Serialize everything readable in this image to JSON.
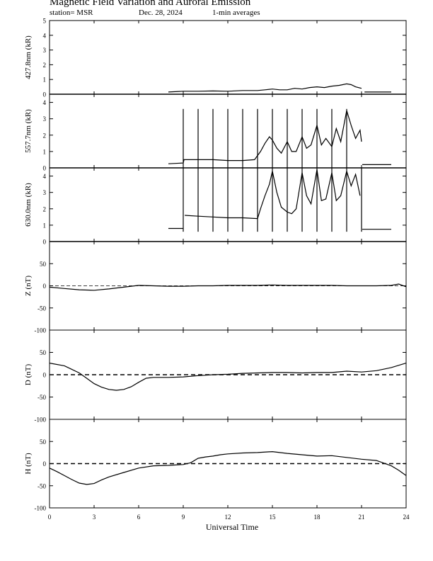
{
  "header": {
    "title": "Magnetic Field Variation and Auroral Emission",
    "station": "station= MSR",
    "date": "Dec. 28, 2024",
    "averaging": "1-min averages"
  },
  "chart_data": {
    "type": "line",
    "xlabel": "Universal Time",
    "xlim": [
      0,
      24
    ],
    "xticks": [
      0,
      3,
      6,
      9,
      12,
      15,
      18,
      21,
      24
    ],
    "panels": [
      {
        "id": "427",
        "ylabel": "427.8nm (kR)",
        "ylim": [
          0,
          5
        ],
        "yticks": [
          0,
          1,
          2,
          3,
          4,
          5
        ],
        "baseline": 0,
        "series": [
          {
            "x": [
              8.0,
              9.0,
              10.0,
              11.0,
              12.0,
              13.0,
              14.0,
              14.5,
              15.0,
              15.5,
              16.0,
              16.5,
              17.0,
              17.5,
              18.0,
              18.5,
              19.0,
              19.5,
              20.0,
              20.3,
              20.6,
              21.0
            ],
            "y": [
              0.15,
              0.2,
              0.2,
              0.22,
              0.2,
              0.25,
              0.25,
              0.3,
              0.35,
              0.3,
              0.3,
              0.4,
              0.35,
              0.45,
              0.5,
              0.45,
              0.55,
              0.6,
              0.7,
              0.65,
              0.5,
              0.4
            ]
          },
          {
            "x": [
              21.2,
              22.0,
              23.0
            ],
            "y": [
              0.15,
              0.15,
              0.15
            ]
          }
        ]
      },
      {
        "id": "557",
        "ylabel": "557.7nm (kR)",
        "ylim": [
          0,
          4.5
        ],
        "yticks": [
          0,
          1,
          2,
          3,
          4
        ],
        "baseline": 0,
        "spikes": [
          9.0,
          10.0,
          11.0,
          12.0,
          13.0,
          14.0,
          15.0,
          16.0,
          17.0,
          18.0,
          19.0,
          20.0
        ],
        "spike_top": 3.6,
        "series": [
          {
            "x": [
              8.0,
              9.0,
              9.05,
              10.0,
              11.0,
              12.0,
              13.0,
              13.8,
              14.2,
              14.5,
              14.8,
              15.0,
              15.3,
              15.6,
              16.0,
              16.3,
              16.6,
              17.0,
              17.3,
              17.6,
              18.0,
              18.3,
              18.6,
              19.0,
              19.3,
              19.6,
              20.0,
              20.3,
              20.6,
              20.9,
              21.0
            ],
            "y": [
              0.25,
              0.3,
              0.5,
              0.5,
              0.5,
              0.45,
              0.45,
              0.5,
              1.0,
              1.5,
              1.9,
              1.7,
              1.2,
              0.9,
              1.6,
              1.0,
              1.0,
              1.9,
              1.2,
              1.4,
              2.6,
              1.4,
              1.8,
              1.3,
              2.4,
              1.6,
              3.5,
              2.6,
              1.8,
              2.3,
              1.6
            ]
          },
          {
            "x": [
              21.05,
              22.0,
              23.0
            ],
            "y": [
              0.2,
              0.2,
              0.2
            ]
          }
        ]
      },
      {
        "id": "630",
        "ylabel": "630.0nm (kR)",
        "ylim": [
          0,
          4.5
        ],
        "yticks": [
          0,
          1,
          2,
          3,
          4
        ],
        "baseline": 0,
        "spikes": [
          9.0,
          10.0,
          11.0,
          12.0,
          13.0,
          14.0,
          15.0,
          16.0,
          17.0,
          18.0,
          19.0,
          20.0,
          21.0
        ],
        "spike_top": 4.5,
        "spike_bottom": 0.6,
        "series": [
          {
            "x": [
              8.0,
              9.0
            ],
            "y": [
              0.8,
              0.8
            ]
          },
          {
            "x": [
              9.1,
              10.0,
              11.0,
              12.0,
              13.0,
              14.0,
              14.2,
              14.5,
              14.8,
              15.0,
              15.3,
              15.6,
              16.0,
              16.3,
              16.6,
              17.0,
              17.3,
              17.6,
              18.0,
              18.3,
              18.6,
              19.0,
              19.3,
              19.6,
              20.0,
              20.3,
              20.6,
              20.9
            ],
            "y": [
              1.6,
              1.55,
              1.5,
              1.45,
              1.45,
              1.4,
              2.0,
              2.8,
              3.5,
              4.3,
              3.0,
              2.1,
              1.8,
              1.7,
              2.0,
              4.2,
              2.8,
              2.3,
              4.4,
              2.5,
              2.6,
              4.2,
              2.5,
              2.8,
              4.3,
              3.4,
              4.1,
              2.8
            ]
          },
          {
            "x": [
              21.05,
              22.0,
              23.0
            ],
            "y": [
              0.75,
              0.75,
              0.75
            ]
          }
        ]
      },
      {
        "id": "Z",
        "ylabel": "Z (nT)",
        "ylim": [
          -100,
          100
        ],
        "yticks": [
          -100,
          -50,
          0,
          50
        ],
        "baseline": 0,
        "baseline_style": "thin-dashed",
        "series": [
          {
            "x": [
              0,
              1,
              2,
              3,
              4,
              5,
              6,
              7,
              8,
              9,
              10,
              11,
              12,
              13,
              14,
              15,
              16,
              17,
              18,
              19,
              20,
              21,
              22,
              23,
              23.5,
              24
            ],
            "y": [
              -3,
              -6,
              -9,
              -10,
              -7,
              -3,
              1,
              0,
              -1,
              -1,
              0,
              0,
              1,
              1,
              1,
              2,
              1,
              1,
              1,
              1,
              0,
              0,
              0,
              1,
              4,
              -2
            ]
          }
        ]
      },
      {
        "id": "D",
        "ylabel": "D (nT)",
        "ylim": [
          -100,
          100
        ],
        "yticks": [
          -100,
          -50,
          0,
          50
        ],
        "baseline": 0,
        "baseline_style": "dashed",
        "series": [
          {
            "x": [
              0,
              1,
              1.5,
              2,
              2.5,
              3,
              3.5,
              4,
              4.5,
              5,
              5.5,
              6,
              6.5,
              7,
              8,
              9,
              10,
              11,
              12,
              13,
              14,
              15,
              16,
              17,
              18,
              19,
              20,
              21,
              22,
              23,
              24
            ],
            "y": [
              26,
              20,
              12,
              4,
              -8,
              -20,
              -28,
              -33,
              -35,
              -33,
              -27,
              -17,
              -8,
              -6,
              -6,
              -5,
              -2,
              0,
              1,
              3,
              4,
              5,
              5,
              4,
              5,
              5,
              8,
              6,
              9,
              16,
              26
            ]
          }
        ]
      },
      {
        "id": "H",
        "ylabel": "H (nT)",
        "ylim": [
          -100,
          100
        ],
        "yticks": [
          -100,
          -50,
          0,
          50
        ],
        "baseline": 0,
        "baseline_style": "dashed",
        "series": [
          {
            "x": [
              0,
              0.5,
              1,
              1.5,
              2,
              2.5,
              3,
              3.5,
              4,
              5,
              6,
              7,
              8,
              9,
              9.5,
              10,
              10.5,
              11,
              11.5,
              12,
              13,
              14,
              15,
              16,
              17,
              18,
              19,
              20,
              21,
              22,
              23,
              23.5,
              24
            ],
            "y": [
              -10,
              -18,
              -27,
              -36,
              -44,
              -47,
              -45,
              -37,
              -30,
              -20,
              -10,
              -5,
              -4,
              -2,
              2,
              12,
              15,
              17,
              20,
              22,
              24,
              25,
              27,
              23,
              20,
              17,
              18,
              14,
              10,
              7,
              -5,
              -15,
              -27
            ]
          }
        ]
      }
    ]
  }
}
